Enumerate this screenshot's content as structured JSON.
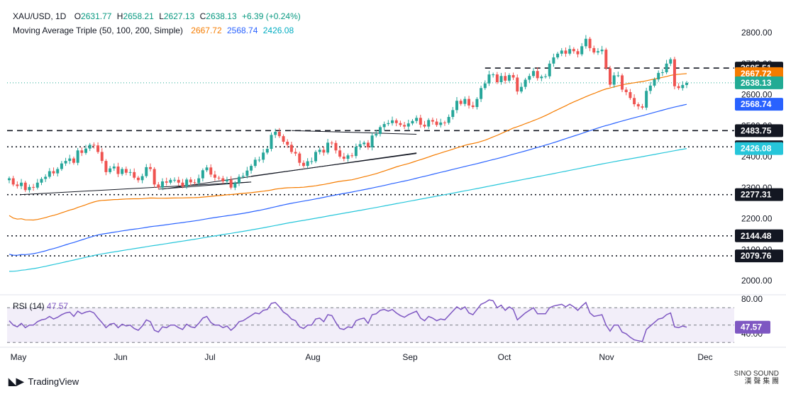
{
  "header": {
    "symbol": "XAU/USD, 1D",
    "open_label": "O",
    "open": "2631.77",
    "high_label": "H",
    "high": "2658.21",
    "low_label": "L",
    "low": "2627.13",
    "close_label": "C",
    "close": "2638.13",
    "change": "+6.39 (+0.24%)",
    "ma_label": "Moving Average Triple (50, 100, 200, Simple)",
    "ma50": "2667.72",
    "ma100": "2568.74",
    "ma200": "2426.08"
  },
  "colors": {
    "up": "#26a69a",
    "down": "#ef5350",
    "ma50": "#f57c00",
    "ma100": "#2962ff",
    "ma200": "#26c6da",
    "rsi": "#7e57c2",
    "price_label": "#22ab94",
    "level": "#131722"
  },
  "branding": {
    "tradingview": "TradingView",
    "watermark_top": "SINO SOUND",
    "watermark_bottom": "漢 聲 集 團"
  },
  "chart_data": {
    "type": "candlestick",
    "y_ticks": [
      "2800.00",
      "2700.00",
      "2600.00",
      "2500.00",
      "2400.00",
      "2300.00",
      "2200.00",
      "2100.00",
      "2000.00"
    ],
    "x_labels": [
      "May",
      "Jun",
      "Jul",
      "Aug",
      "Sep",
      "Oct",
      "Nov",
      "Dec"
    ],
    "ylim": [
      1900,
      2840
    ],
    "price_labels": [
      {
        "text": "2685.51",
        "value": 2685.51,
        "kind": "level"
      },
      {
        "text": "2667.72",
        "value": 2667.72,
        "kind": "ma50"
      },
      {
        "text": "2638.13",
        "value": 2638.13,
        "kind": "price"
      },
      {
        "text": "2568.74",
        "value": 2568.74,
        "kind": "ma100"
      },
      {
        "text": "2483.75",
        "value": 2483.75,
        "kind": "level"
      },
      {
        "text": "2431.61",
        "value": 2431.61,
        "kind": "level"
      },
      {
        "text": "2426.08",
        "value": 2426.08,
        "kind": "ma200"
      },
      {
        "text": "2277.31",
        "value": 2277.31,
        "kind": "level"
      },
      {
        "text": "2144.48",
        "value": 2144.48,
        "kind": "level"
      },
      {
        "text": "2079.76",
        "value": 2079.76,
        "kind": "level"
      }
    ],
    "levels": [
      {
        "value": 2685.51,
        "style": "dashed",
        "from_index": 118
      },
      {
        "value": 2483.75,
        "style": "dashed",
        "from_index": 0
      },
      {
        "value": 2431.61,
        "style": "dotted",
        "from_index": 0
      },
      {
        "value": 2277.31,
        "style": "dotted",
        "from_index": 0
      },
      {
        "value": 2144.48,
        "style": "dotted",
        "from_index": 0
      },
      {
        "value": 2079.76,
        "style": "dotted",
        "from_index": 0
      }
    ],
    "ma_endpoints": {
      "ma50": [
        2210,
        2667.72
      ],
      "ma100": [
        2085,
        2568.74
      ],
      "ma200": [
        2030,
        2426.08
      ]
    },
    "closes": [
      2330,
      2310,
      2305,
      2316,
      2292,
      2302,
      2300,
      2316,
      2328,
      2335,
      2353,
      2346,
      2360,
      2378,
      2386,
      2394,
      2380,
      2420,
      2412,
      2426,
      2438,
      2436,
      2415,
      2386,
      2350,
      2362,
      2368,
      2344,
      2360,
      2348,
      2350,
      2332,
      2324,
      2337,
      2366,
      2360,
      2310,
      2300,
      2320,
      2316,
      2325,
      2325,
      2316,
      2304,
      2326,
      2317,
      2315,
      2330,
      2356,
      2365,
      2342,
      2332,
      2330,
      2320,
      2325,
      2300,
      2315,
      2335,
      2338,
      2355,
      2370,
      2390,
      2390,
      2413,
      2425,
      2470,
      2480,
      2466,
      2448,
      2438,
      2415,
      2410,
      2380,
      2370,
      2385,
      2385,
      2415,
      2422,
      2413,
      2445,
      2444,
      2420,
      2400,
      2393,
      2404,
      2402,
      2432,
      2440,
      2445,
      2430,
      2468,
      2473,
      2495,
      2505,
      2508,
      2517,
      2508,
      2502,
      2497,
      2507,
      2515,
      2525,
      2503,
      2497,
      2518,
      2513,
      2502,
      2510,
      2509,
      2528,
      2550,
      2580,
      2570,
      2586,
      2565,
      2560,
      2586,
      2621,
      2636,
      2665,
      2665,
      2640,
      2660,
      2645,
      2663,
      2655,
      2610,
      2625,
      2648,
      2660,
      2676,
      2653,
      2658,
      2659,
      2700,
      2720,
      2732,
      2742,
      2732,
      2747,
      2740,
      2730,
      2756,
      2780,
      2750,
      2736,
      2740,
      2745,
      2685,
      2632,
      2662,
      2662,
      2616,
      2608,
      2589,
      2569,
      2562,
      2558,
      2612,
      2629,
      2649,
      2670,
      2672,
      2700,
      2714,
      2627,
      2621,
      2631,
      2638
    ],
    "trendlines": [
      {
        "from": [
          3,
          2277.31
        ],
        "to": [
          60,
          2318
        ]
      },
      {
        "from": [
          37,
          2295
        ],
        "to": [
          60,
          2318
        ]
      },
      {
        "from": [
          38,
          2295
        ],
        "to": [
          101,
          2412
        ]
      },
      {
        "from": [
          60,
          2337
        ],
        "to": [
          101,
          2410
        ]
      },
      {
        "from": [
          70,
          2484
        ],
        "to": [
          101,
          2472
        ]
      }
    ],
    "rsi": {
      "label": "RSI (14)",
      "value": "47.57",
      "ylim": [
        20,
        80
      ],
      "ticks": [
        "80.00",
        "40.00"
      ],
      "band": [
        30,
        70
      ],
      "values": [
        55,
        50,
        48,
        52,
        47,
        50,
        50,
        54,
        56,
        57,
        60,
        57,
        59,
        62,
        64,
        65,
        60,
        66,
        63,
        65,
        66,
        64,
        58,
        53,
        47,
        51,
        52,
        47,
        51,
        49,
        50,
        46,
        44,
        49,
        56,
        54,
        44,
        42,
        48,
        47,
        50,
        50,
        47,
        45,
        51,
        48,
        47,
        52,
        58,
        60,
        53,
        50,
        50,
        47,
        49,
        44,
        48,
        54,
        55,
        58,
        61,
        64,
        63,
        67,
        68,
        75,
        76,
        71,
        65,
        62,
        57,
        55,
        48,
        46,
        50,
        50,
        57,
        58,
        54,
        62,
        61,
        53,
        46,
        45,
        48,
        47,
        55,
        57,
        58,
        52,
        62,
        63,
        67,
        68,
        66,
        68,
        64,
        61,
        59,
        62,
        64,
        66,
        58,
        55,
        60,
        58,
        55,
        57,
        56,
        61,
        66,
        71,
        68,
        71,
        64,
        62,
        68,
        74,
        76,
        79,
        78,
        70,
        73,
        67,
        71,
        68,
        56,
        60,
        64,
        67,
        70,
        63,
        63,
        63,
        70,
        72,
        73,
        74,
        71,
        74,
        71,
        67,
        72,
        76,
        64,
        60,
        61,
        62,
        50,
        43,
        50,
        50,
        42,
        40,
        36,
        33,
        32,
        31,
        45,
        49,
        53,
        57,
        58,
        62,
        64,
        48,
        47,
        49,
        47.57
      ]
    }
  }
}
